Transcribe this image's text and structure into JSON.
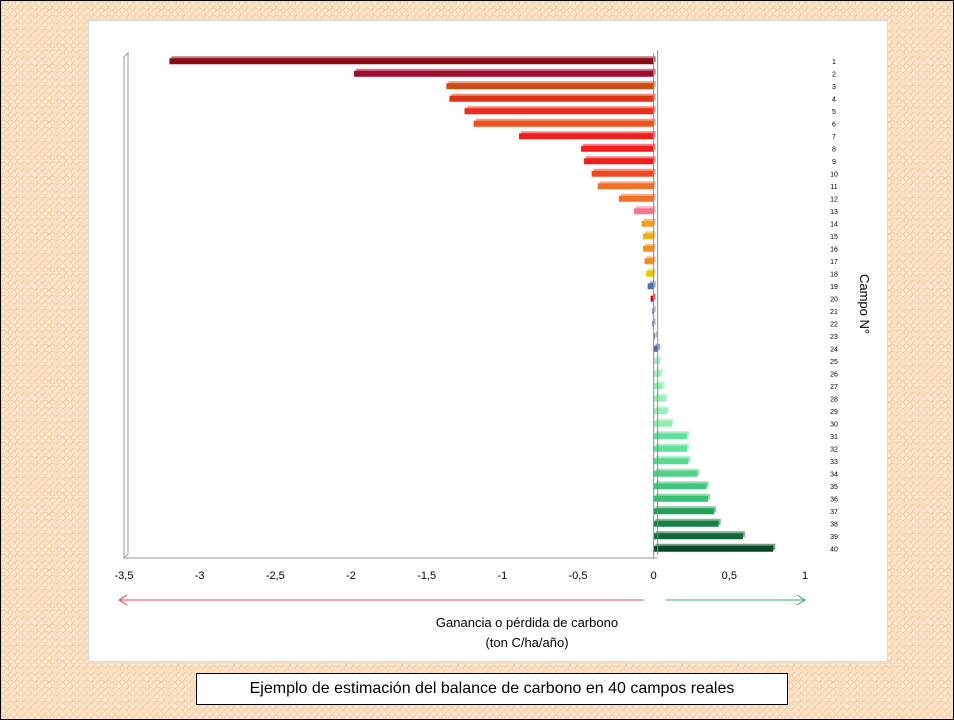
{
  "caption": "Ejemplo de estimación del balance de carbono en 40 campos reales",
  "chart_data": {
    "type": "bar",
    "orientation": "horizontal",
    "xlabel_lines": [
      "Ganancia o pérdida de carbono",
      "(ton C/ha/año)"
    ],
    "ylabel": "Campo N°",
    "xlim": [
      -3.5,
      1
    ],
    "xticks": [
      -3.5,
      -3,
      -2.5,
      -2,
      -1.5,
      -1,
      -0.5,
      0,
      0.5,
      1
    ],
    "xtick_labels": [
      "-3,5",
      "-3",
      "-2,5",
      "-2",
      "-1,5",
      "-1",
      "-0,5",
      "0",
      "0,5",
      "1"
    ],
    "categories": [
      "1",
      "2",
      "3",
      "4",
      "5",
      "6",
      "7",
      "8",
      "9",
      "10",
      "11",
      "12",
      "13",
      "14",
      "15",
      "16",
      "17",
      "18",
      "19",
      "20",
      "21",
      "22",
      "23",
      "24",
      "25",
      "26",
      "27",
      "28",
      "29",
      "30",
      "31",
      "32",
      "33",
      "34",
      "35",
      "36",
      "37",
      "38",
      "39",
      "40"
    ],
    "values": [
      -3.2,
      -1.98,
      -1.37,
      -1.35,
      -1.25,
      -1.19,
      -0.89,
      -0.48,
      -0.46,
      -0.41,
      -0.37,
      -0.23,
      -0.13,
      -0.08,
      -0.07,
      -0.07,
      -0.06,
      -0.05,
      -0.04,
      -0.02,
      -0.01,
      -0.01,
      0.01,
      0.03,
      0.04,
      0.05,
      0.06,
      0.08,
      0.09,
      0.12,
      0.22,
      0.22,
      0.23,
      0.29,
      0.35,
      0.36,
      0.4,
      0.43,
      0.59,
      0.79
    ],
    "colors": [
      "#8b0a14",
      "#a00c2a",
      "#d04a14",
      "#dc3416",
      "#ee2c1a",
      "#f0501e",
      "#f01e1e",
      "#f01e1e",
      "#f01e1e",
      "#f04820",
      "#f07028",
      "#f07028",
      "#f07888",
      "#f0a020",
      "#f0b010",
      "#f09020",
      "#f09020",
      "#f0c800",
      "#5070a8",
      "#c81010",
      "#7080a0",
      "#7080a0",
      "#7080a0",
      "#4868a0",
      "#a8f0c8",
      "#a0f0c0",
      "#98f0b8",
      "#98f0b8",
      "#98f0b8",
      "#90f0b0",
      "#60e098",
      "#60e098",
      "#58d890",
      "#50d088",
      "#40c880",
      "#38c070",
      "#20a058",
      "#188048",
      "#106838",
      "#084828"
    ],
    "arrows": {
      "negative_color": "#e84040",
      "positive_color": "#30b050"
    }
  }
}
